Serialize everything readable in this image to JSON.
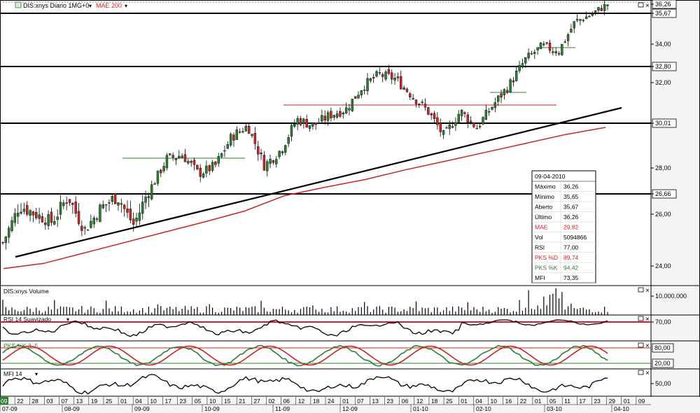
{
  "colors": {
    "up": "#2e7d32",
    "down": "#c62828",
    "ma": "#cc2222",
    "rsi_band": "#cc2222",
    "stoch_d": "#cc2222",
    "stoch_k": "#2e7d32",
    "legend_red": "#cc2222",
    "legend_green": "#2e7d32"
  },
  "header": {
    "symbol_label": "DIS:xnys Diario 1MG+0",
    "ma_label": "MAE 200"
  },
  "price_axis": {
    "ticks": [
      "36,26",
      "35,67",
      "34,00",
      "32,80",
      "32,00",
      "30,01",
      "30,00",
      "28,00",
      "26,66",
      "26,00",
      "24,00"
    ]
  },
  "panels": {
    "volume": {
      "title": "DIS:xnys Volume",
      "tick": "10.000.000"
    },
    "rsi": {
      "title": "RSI 14 Suavizado",
      "tick": "70,00"
    },
    "stoch": {
      "title": "PKS %K 3, 5",
      "ticks": [
        "80,00",
        "20,00"
      ]
    },
    "mfi": {
      "title": "MFI 14",
      "tick": "50,00"
    }
  },
  "date_axis": {
    "days": [
      "09",
      "22",
      "28",
      "03",
      "07",
      "13",
      "19",
      "25",
      "01",
      "04",
      "10",
      "17",
      "23",
      "05",
      "10",
      "15",
      "21",
      "27",
      "02",
      "06",
      "12",
      "18",
      "24",
      "01",
      "07",
      "13",
      "23",
      "06",
      "12",
      "18",
      "25",
      "01",
      "04",
      "10",
      "16",
      "22",
      "01",
      "05",
      "11",
      "17",
      "23",
      "29",
      "01",
      "09"
    ],
    "months": [
      "07-09",
      "08-09",
      "09-09",
      "10-09",
      "11-09",
      "12-09",
      "01-10",
      "02-10",
      "03-10",
      "04-10"
    ]
  },
  "info_box": {
    "date": "09-04-2010",
    "rows": [
      {
        "label": "Máximo",
        "value": "36,26",
        "color": "#000000"
      },
      {
        "label": "Mínimo",
        "value": "35,65",
        "color": "#000000"
      },
      {
        "label": "Aberto",
        "value": "35,67",
        "color": "#000000"
      },
      {
        "label": "Último",
        "value": "36,26",
        "color": "#000000"
      },
      {
        "label": "MAE",
        "value": "29,82",
        "color": "#cc2222"
      },
      {
        "label": "Vol",
        "value": "5094866",
        "color": "#000000"
      },
      {
        "label": "RSI",
        "value": "77,00",
        "color": "#000000"
      },
      {
        "label": "PKS %D",
        "value": "89,74",
        "color": "#cc2222"
      },
      {
        "label": "PKS %K",
        "value": "94,42",
        "color": "#2e7d32"
      },
      {
        "label": "MFI",
        "value": "73,35",
        "color": "#000000"
      }
    ]
  },
  "chart_data": {
    "type": "line",
    "series": [
      {
        "name": "MAE 200",
        "values": [
          23.9,
          24.1,
          24.5,
          24.9,
          25.3,
          25.7,
          26.1,
          26.6,
          27.0,
          27.4,
          27.9,
          28.3,
          28.7,
          29.1,
          29.5,
          29.82
        ]
      }
    ],
    "price_path": [
      24.9,
      26.3,
      26.0,
      25.7,
      26.6,
      25.4,
      26.2,
      26.6,
      25.6,
      26.9,
      28.4,
      28.6,
      27.7,
      28.1,
      29.4,
      29.9,
      28.1,
      28.8,
      30.2,
      29.9,
      30.4,
      30.7,
      31.8,
      32.4,
      32.2,
      31.4,
      30.6,
      29.4,
      30.6,
      29.8,
      30.9,
      31.9,
      33.2,
      33.9,
      33.6,
      35.2,
      35.6,
      36.26
    ],
    "horizontal_levels": [
      35.67,
      32.8,
      30.01,
      26.66
    ]
  }
}
